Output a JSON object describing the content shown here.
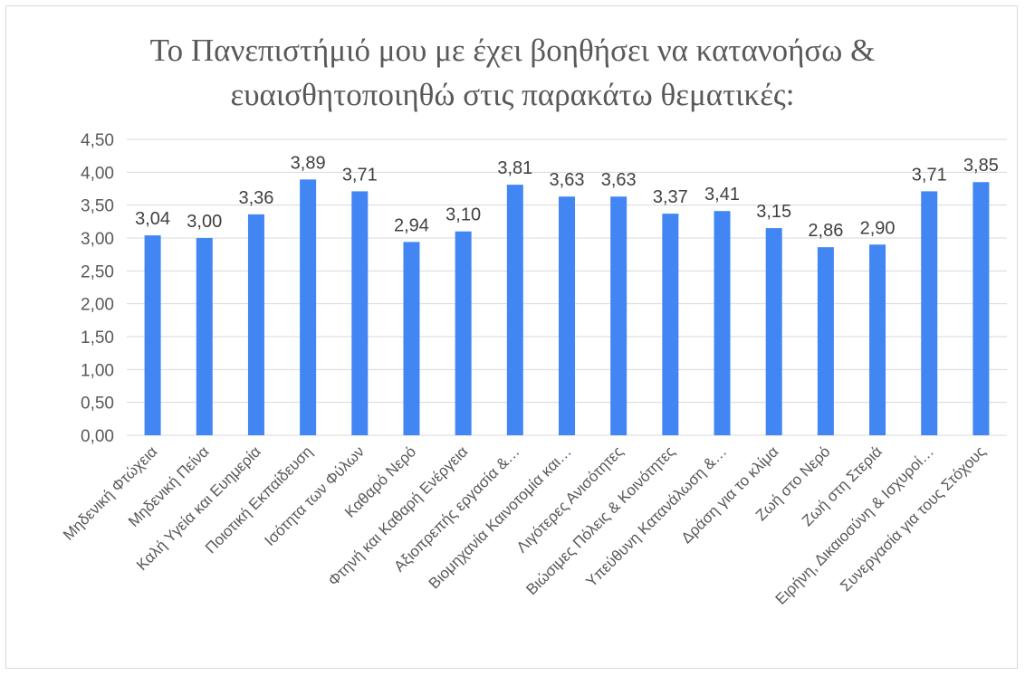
{
  "chart_data": {
    "type": "bar",
    "title_line1": "Το Πανεπιστήμιό μου με έχει βοηθήσει να κατανοήσω &",
    "title_line2": "ευαισθητοποιηθώ στις παρακάτω θεματικές:",
    "categories": [
      "Μηδενική Φτώχεια",
      "Μηδενική Πείνα",
      "Καλή Υγεία και Ευημερία",
      "Ποιοτική Εκπαίδευση",
      "Ισότητα των Φύλων",
      "Καθαρό Νερό",
      "Φτηνή και Καθαρή Ενέργεια",
      "Αξιοπρεπής εργασία &…",
      "Βιομηχανία Καινοτομία και…",
      "Λιγότερες Ανισότητες",
      "Βιώσιμες Πόλεις & Κοινότητες",
      "Υπεύθυνη Κατανάλωση &…",
      "Δράση για το κλίμα",
      "Ζωή στο Νερό",
      "Ζωή στη Στεριά",
      "Ειρήνη, Δικαιοσύνη & Ισχυροί…",
      "Συνεργασία για τους Στόχους"
    ],
    "values": [
      3.04,
      3.0,
      3.36,
      3.89,
      3.71,
      2.94,
      3.1,
      3.81,
      3.63,
      3.63,
      3.37,
      3.41,
      3.15,
      2.86,
      2.9,
      3.71,
      3.85
    ],
    "value_labels": [
      "3,04",
      "3,00",
      "3,36",
      "3,89",
      "3,71",
      "2,94",
      "3,10",
      "3,81",
      "3,63",
      "3,63",
      "3,37",
      "3,41",
      "3,15",
      "2,86",
      "2,90",
      "3,71",
      "3,85"
    ],
    "y_ticks": [
      "0,00",
      "0,50",
      "1,00",
      "1,50",
      "2,00",
      "2,50",
      "3,00",
      "3,50",
      "4,00",
      "4,50"
    ],
    "ylim": [
      0,
      4.5
    ],
    "grid": true,
    "legend": "none",
    "bar_color": "#4286f4",
    "grid_color": "#d9d9d9"
  }
}
